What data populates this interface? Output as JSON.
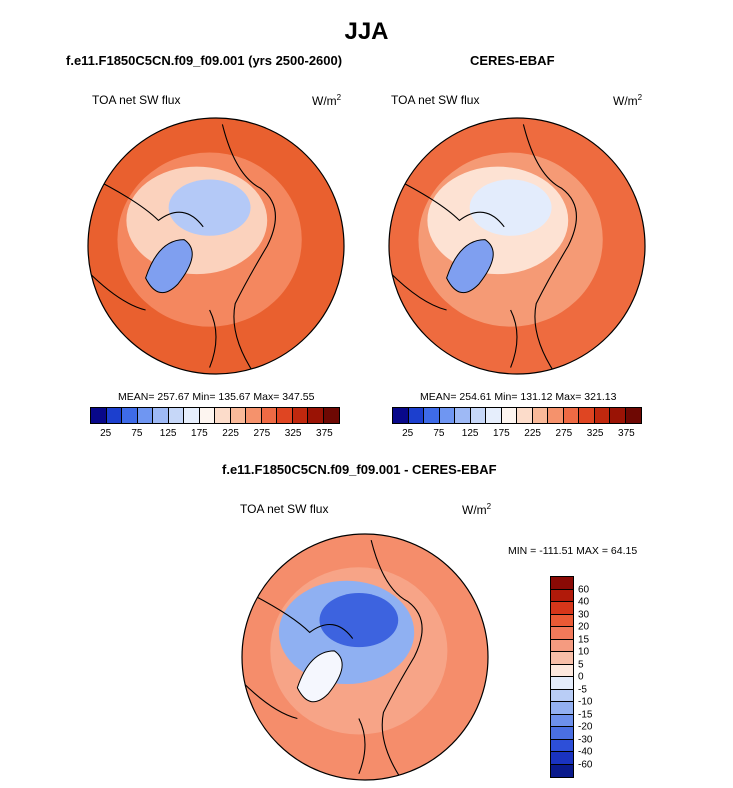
{
  "title": "JJA",
  "chart_data": [
    {
      "type": "heatmap",
      "projection": "north polar stereographic",
      "title": "f.e11.F1850C5CN.f09_f09.001 (yrs 2500-2600)",
      "variable": "TOA net SW flux",
      "units": "W/m",
      "units_sup": "2",
      "stats": {
        "mean": 257.67,
        "min": 135.67,
        "max": 347.55
      },
      "stats_text": "MEAN= 257.67  Min= 135.67  Max= 347.55",
      "colorbar": {
        "levels": [
          25,
          50,
          75,
          100,
          125,
          150,
          175,
          200,
          225,
          250,
          275,
          300,
          325,
          350,
          375
        ],
        "tick_labels": [
          "25",
          "75",
          "125",
          "175",
          "225",
          "275",
          "325",
          "375"
        ],
        "colors": [
          "#08088a",
          "#1c3fce",
          "#3e6be8",
          "#6f96f2",
          "#9eb9f5",
          "#c6d7f8",
          "#e6eefc",
          "#fdf5f0",
          "#fcdcca",
          "#f9b999",
          "#f5926c",
          "#ee6a44",
          "#df4522",
          "#c0280e",
          "#9a1305",
          "#6e0803"
        ]
      }
    },
    {
      "type": "heatmap",
      "projection": "north polar stereographic",
      "title": "CERES-EBAF",
      "variable": "TOA net SW flux",
      "units": "W/m",
      "units_sup": "2",
      "stats": {
        "mean": 254.61,
        "min": 131.12,
        "max": 321.13
      },
      "stats_text": "MEAN= 254.61  Min= 131.12  Max= 321.13",
      "colorbar": {
        "levels": [
          25,
          50,
          75,
          100,
          125,
          150,
          175,
          200,
          225,
          250,
          275,
          300,
          325,
          350,
          375
        ],
        "tick_labels": [
          "25",
          "75",
          "125",
          "175",
          "225",
          "275",
          "325",
          "375"
        ],
        "colors": [
          "#08088a",
          "#1c3fce",
          "#3e6be8",
          "#6f96f2",
          "#9eb9f5",
          "#c6d7f8",
          "#e6eefc",
          "#fdf5f0",
          "#fcdcca",
          "#f9b999",
          "#f5926c",
          "#ee6a44",
          "#df4522",
          "#c0280e",
          "#9a1305",
          "#6e0803"
        ]
      }
    },
    {
      "type": "heatmap",
      "projection": "north polar stereographic",
      "title": "f.e11.F1850C5CN.f09_f09.001 - CERES-EBAF",
      "variable": "TOA net SW flux",
      "units": "W/m",
      "units_sup": "2",
      "stats": {
        "min": -111.51,
        "max": 64.15
      },
      "stats_text": "MIN = -111.51  MAX =  64.15",
      "colorbar": {
        "orientation": "vertical",
        "levels": [
          -60,
          -40,
          -30,
          -20,
          -15,
          -10,
          -5,
          0,
          5,
          10,
          15,
          20,
          30,
          40,
          60
        ],
        "tick_labels": [
          "60",
          "40",
          "30",
          "20",
          "15",
          "10",
          "5",
          "0",
          "-5",
          "-10",
          "-15",
          "-20",
          "-30",
          "-40",
          "-60"
        ],
        "colors_top_to_bottom": [
          "#8a0a05",
          "#b11a0a",
          "#d6361a",
          "#ea5a35",
          "#f2795a",
          "#f59b80",
          "#f8bea8",
          "#fde8de",
          "#e4ecfb",
          "#b9cdf6",
          "#93b0f1",
          "#6d90ec",
          "#4a6fe3",
          "#2d4fd8",
          "#1a33c0",
          "#0a1a8c"
        ]
      }
    }
  ]
}
